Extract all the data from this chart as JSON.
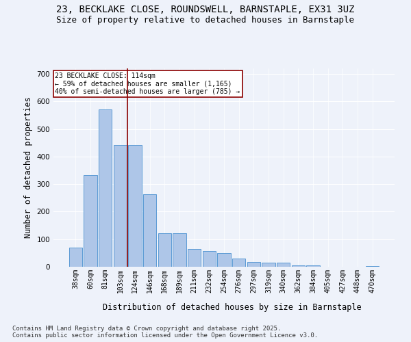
{
  "title1": "23, BECKLAKE CLOSE, ROUNDSWELL, BARNSTAPLE, EX31 3UZ",
  "title2": "Size of property relative to detached houses in Barnstaple",
  "xlabel": "Distribution of detached houses by size in Barnstaple",
  "ylabel": "Number of detached properties",
  "categories": [
    "38sqm",
    "60sqm",
    "81sqm",
    "103sqm",
    "124sqm",
    "146sqm",
    "168sqm",
    "189sqm",
    "211sqm",
    "232sqm",
    "254sqm",
    "276sqm",
    "297sqm",
    "319sqm",
    "340sqm",
    "362sqm",
    "384sqm",
    "405sqm",
    "427sqm",
    "448sqm",
    "470sqm"
  ],
  "values": [
    70,
    333,
    570,
    443,
    443,
    262,
    122,
    122,
    65,
    57,
    50,
    30,
    18,
    15,
    14,
    6,
    4,
    0,
    0,
    0,
    3
  ],
  "bar_color": "#aec6e8",
  "bar_edge_color": "#5b9bd5",
  "vline_label": "23 BECKLAKE CLOSE: 114sqm",
  "annotation_text1": "← 59% of detached houses are smaller (1,165)",
  "annotation_text2": "40% of semi-detached houses are larger (785) →",
  "vline_color": "#8b0000",
  "annotation_box_color": "#ffffff",
  "annotation_box_edge": "#8b0000",
  "background_color": "#eef2fa",
  "grid_color": "#ffffff",
  "footnote1": "Contains HM Land Registry data © Crown copyright and database right 2025.",
  "footnote2": "Contains public sector information licensed under the Open Government Licence v3.0.",
  "ylim": [
    0,
    720
  ],
  "title_fontsize": 10,
  "subtitle_fontsize": 9,
  "axis_label_fontsize": 8.5,
  "tick_fontsize": 7,
  "footnote_fontsize": 6.5
}
